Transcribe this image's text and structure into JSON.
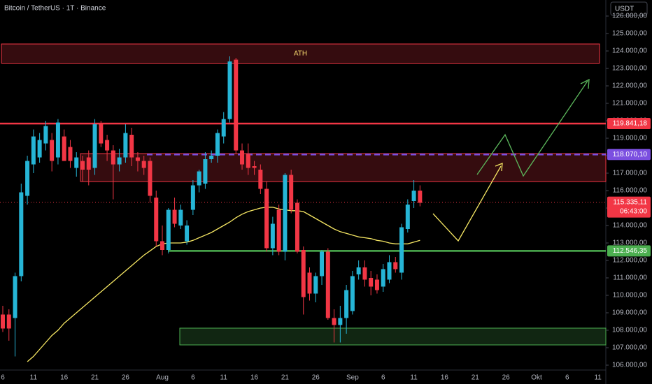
{
  "chart_data": {
    "type": "candlestick",
    "title": "Bitcoin / TetherUS · 1T · Binance",
    "currency": "USDT",
    "up_color": "#26b5d6",
    "down_color": "#f23645",
    "categories": [
      "6",
      null,
      null,
      null,
      null,
      "11",
      null,
      null,
      null,
      null,
      "16",
      null,
      null,
      null,
      null,
      "21",
      null,
      null,
      null,
      null,
      "26",
      null,
      null,
      null,
      null,
      null,
      "Aug",
      null,
      null,
      null,
      null,
      "6",
      null,
      null,
      null,
      null,
      "11",
      null,
      null,
      null,
      null,
      "16",
      null,
      null,
      null,
      null,
      "21",
      null,
      null,
      null,
      null,
      "26",
      null,
      null,
      null,
      null,
      null,
      "Sep",
      null,
      null,
      null,
      null,
      "6",
      null,
      null,
      null,
      null,
      "11",
      null,
      null,
      null,
      null,
      "16",
      null,
      null,
      null,
      null,
      "21",
      null,
      null,
      null,
      null,
      "26",
      null,
      null,
      null,
      null,
      "Okt",
      null,
      null,
      null,
      null,
      "6",
      null,
      null,
      null,
      null,
      "11"
    ],
    "open": [
      108900,
      108900,
      108700,
      111100,
      115700,
      117500,
      117900,
      118700,
      118900,
      117900,
      119100,
      118500,
      117300,
      117700,
      117900,
      117300,
      119800,
      118900,
      118300,
      117500,
      117900,
      119200,
      117900,
      117700,
      117700,
      115600,
      113100,
      112600,
      114900,
      114000,
      113100,
      114900,
      116300,
      116400,
      117800,
      118000,
      119100,
      120100,
      123500,
      118300,
      118100,
      117400,
      117200,
      116100,
      112700,
      114900,
      112500,
      116900,
      115300,
      112600,
      111300,
      110100,
      111100,
      112500,
      108700,
      108300,
      108700,
      109100,
      111200,
      111600,
      111000,
      110900,
      110500,
      110900,
      111900,
      111300,
      113800,
      115400,
      116000,
      null,
      null,
      null,
      null,
      null,
      null,
      null,
      null,
      null,
      null,
      null,
      null,
      null,
      null,
      null,
      null,
      null,
      null,
      null,
      null,
      null,
      null,
      null,
      null,
      null,
      null,
      null,
      null,
      null
    ],
    "high": [
      109400,
      109200,
      111300,
      116400,
      118000,
      119500,
      119300,
      120000,
      119300,
      120100,
      119500,
      118900,
      118200,
      118000,
      118300,
      120100,
      120000,
      119200,
      118600,
      118400,
      119800,
      119600,
      118200,
      118000,
      117900,
      116000,
      114000,
      115000,
      115600,
      115200,
      114300,
      116600,
      117200,
      118200,
      118300,
      119500,
      120500,
      123700,
      123600,
      118700,
      118700,
      117700,
      117500,
      116500,
      114500,
      115200,
      117000,
      117200,
      115500,
      112800,
      111600,
      111300,
      112600,
      112700,
      109200,
      109400,
      110600,
      111400,
      112000,
      112000,
      111400,
      111200,
      111800,
      112300,
      112200,
      114100,
      115500,
      116600,
      116300,
      null,
      null,
      null,
      null,
      null,
      null,
      null,
      null,
      null,
      null,
      null,
      null,
      null,
      null,
      null,
      null,
      null,
      null,
      null,
      null,
      null,
      null,
      null,
      null,
      null,
      null,
      null,
      null,
      null
    ],
    "low": [
      107900,
      107400,
      106500,
      110800,
      115200,
      117000,
      117600,
      118300,
      117100,
      117500,
      117700,
      117300,
      116800,
      116500,
      116300,
      116900,
      118500,
      117700,
      115500,
      117100,
      117600,
      117400,
      117100,
      116900,
      115300,
      112800,
      112300,
      112400,
      113900,
      113800,
      112900,
      114600,
      115900,
      116100,
      117600,
      117600,
      118700,
      119900,
      118100,
      117200,
      116900,
      116900,
      115800,
      112500,
      112300,
      112300,
      112000,
      114700,
      112400,
      108900,
      109700,
      109600,
      110600,
      108600,
      107300,
      107300,
      107800,
      108900,
      110900,
      110500,
      110000,
      110100,
      110200,
      110700,
      111300,
      110900,
      113600,
      115000,
      115100,
      null,
      null,
      null,
      null,
      null,
      null,
      null,
      null,
      null,
      null,
      null,
      null,
      null,
      null,
      null,
      null,
      null,
      null,
      null,
      null,
      null,
      null,
      null,
      null,
      null,
      null,
      null,
      null,
      null
    ],
    "close": [
      108100,
      108100,
      111100,
      115900,
      117700,
      119100,
      118900,
      119700,
      117700,
      119900,
      117700,
      117700,
      117900,
      117200,
      117200,
      119800,
      118700,
      118300,
      117500,
      117900,
      119300,
      117900,
      117700,
      117300,
      115700,
      113100,
      112600,
      114900,
      114100,
      114900,
      114000,
      116300,
      117100,
      117800,
      118000,
      119300,
      120100,
      123400,
      118300,
      117500,
      117300,
      117300,
      116100,
      112700,
      114100,
      112500,
      116900,
      114900,
      112500,
      109900,
      110100,
      111100,
      112500,
      108700,
      108300,
      108700,
      110300,
      111100,
      111600,
      110900,
      110500,
      110300,
      111500,
      111900,
      111500,
      113900,
      115200,
      116000,
      115300,
      null,
      null,
      null,
      null,
      null,
      null,
      null,
      null,
      null,
      null,
      null,
      null,
      null,
      null,
      null,
      null,
      null,
      null,
      null,
      null,
      null,
      null,
      null,
      null,
      null,
      null,
      null,
      null,
      null
    ],
    "ma": {
      "color": "#f5e663",
      "values": [
        null,
        null,
        null,
        null,
        106200,
        106500,
        106900,
        107300,
        107700,
        108000,
        108400,
        108700,
        109000,
        109300,
        109600,
        109900,
        110200,
        110500,
        110800,
        111100,
        111400,
        111700,
        112000,
        112300,
        112550,
        112800,
        112950,
        113000,
        113000,
        113000,
        113050,
        113150,
        113300,
        113450,
        113600,
        113800,
        114000,
        114200,
        114450,
        114650,
        114800,
        114900,
        115000,
        115050,
        115050,
        114950,
        114900,
        114850,
        114850,
        114800,
        114600,
        114400,
        114200,
        114000,
        113800,
        113650,
        113550,
        113450,
        113350,
        113300,
        113250,
        113150,
        113100,
        113000,
        112950,
        112950,
        112950,
        113050,
        113150,
        null,
        null,
        null,
        null,
        null,
        null,
        null,
        null,
        null,
        null,
        null,
        null,
        null,
        null,
        null,
        null,
        null,
        null,
        null,
        null,
        null,
        null,
        null,
        null,
        null,
        null,
        null,
        null,
        null
      ]
    },
    "ylim": [
      104920,
      126920
    ],
    "yticks": [
      {
        "value": 106000,
        "label": "106.000,00"
      },
      {
        "value": 107000,
        "label": "107.000,00"
      },
      {
        "value": 108000,
        "label": "108.000,00"
      },
      {
        "value": 109000,
        "label": "109.000,00"
      },
      {
        "value": 110000,
        "label": "110.000,00"
      },
      {
        "value": 111000,
        "label": "111.000,00"
      },
      {
        "value": 112000,
        "label": "112.000,00"
      },
      {
        "value": 113000,
        "label": "113.000,00"
      },
      {
        "value": 114000,
        "label": "114.000,00"
      },
      {
        "value": 115000,
        "label": "115.000,00"
      },
      {
        "value": 116000,
        "label": "116.000,00"
      },
      {
        "value": 117000,
        "label": "117.000,00"
      },
      {
        "value": 118000,
        "label": "118.000,00"
      },
      {
        "value": 119000,
        "label": "119.000,00"
      },
      {
        "value": 120000,
        "label": "120.000,00"
      },
      {
        "value": 121000,
        "label": "121.000,00"
      },
      {
        "value": 122000,
        "label": "122.000,00"
      },
      {
        "value": 123000,
        "label": "123.000,00"
      },
      {
        "value": 124000,
        "label": "124.000,00"
      },
      {
        "value": 125000,
        "label": "125.000,00"
      },
      {
        "value": 126000,
        "label": "126.000,00"
      }
    ],
    "zones": [
      {
        "from": 123300,
        "to": 124400,
        "label": "ATH",
        "color": "#f23645"
      },
      {
        "from": 116520,
        "to": 118120,
        "color": "#f23645"
      },
      {
        "from": 107160,
        "to": 108120,
        "color": "#4caf50"
      }
    ],
    "levels": [
      {
        "value": 119841.18,
        "label": "119.841,18",
        "color": "#f23645",
        "style": "solid"
      },
      {
        "value": 118070.1,
        "label": "118.070,10",
        "color": "#7b4fe0",
        "style": "dashed"
      },
      {
        "value": 112546.35,
        "label": "112.546,35",
        "color": "#4caf50",
        "style": "solid"
      }
    ],
    "last_price": {
      "value": 115335.11,
      "label": "115.335,11",
      "countdown": "06:43:00",
      "color": "#f23645"
    }
  }
}
